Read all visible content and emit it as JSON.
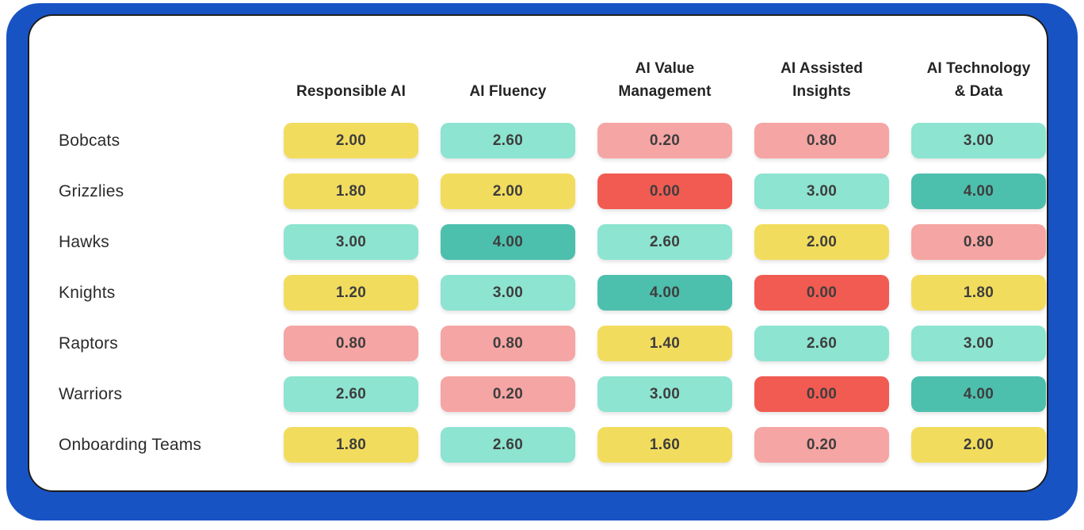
{
  "palette": {
    "frame_blue": "#1853C4",
    "card_background": "#FFFFFF",
    "card_border": "#1D1D1D",
    "red": "#F15B52",
    "pink": "#F5A5A3",
    "yellow": "#F2DC5D",
    "teal_light": "#8DE4D0",
    "teal_dark": "#4DBFAD",
    "cell_text": "#3E3E3E",
    "header_text": "#242424",
    "label_text": "#2B2B2B"
  },
  "chart_data": {
    "type": "heatmap",
    "title": "",
    "value_range": [
      0,
      4
    ],
    "value_format": "two-decimal",
    "columns": [
      {
        "label": "Responsible AI",
        "lines": [
          "Responsible AI"
        ]
      },
      {
        "label": "AI Fluency",
        "lines": [
          "AI Fluency"
        ]
      },
      {
        "label": "AI Value Management",
        "lines": [
          "AI Value",
          "Management"
        ]
      },
      {
        "label": "AI Assisted Insights",
        "lines": [
          "AI Assisted",
          "Insights"
        ]
      },
      {
        "label": "AI Technology & Data",
        "lines": [
          "AI Technology",
          "& Data"
        ]
      }
    ],
    "rows": [
      {
        "team": "Bobcats",
        "cells": [
          {
            "value": 2.0,
            "display": "2.00",
            "color": "yellow"
          },
          {
            "value": 2.6,
            "display": "2.60",
            "color": "teal_light"
          },
          {
            "value": 0.2,
            "display": "0.20",
            "color": "pink"
          },
          {
            "value": 0.8,
            "display": "0.80",
            "color": "pink"
          },
          {
            "value": 3.0,
            "display": "3.00",
            "color": "teal_light"
          }
        ]
      },
      {
        "team": "Grizzlies",
        "cells": [
          {
            "value": 1.8,
            "display": "1.80",
            "color": "yellow"
          },
          {
            "value": 2.0,
            "display": "2.00",
            "color": "yellow"
          },
          {
            "value": 0.0,
            "display": "0.00",
            "color": "red"
          },
          {
            "value": 3.0,
            "display": "3.00",
            "color": "teal_light"
          },
          {
            "value": 4.0,
            "display": "4.00",
            "color": "teal_dark"
          }
        ]
      },
      {
        "team": "Hawks",
        "cells": [
          {
            "value": 3.0,
            "display": "3.00",
            "color": "teal_light"
          },
          {
            "value": 4.0,
            "display": "4.00",
            "color": "teal_dark"
          },
          {
            "value": 2.6,
            "display": "2.60",
            "color": "teal_light"
          },
          {
            "value": 2.0,
            "display": "2.00",
            "color": "yellow"
          },
          {
            "value": 0.8,
            "display": "0.80",
            "color": "pink"
          }
        ]
      },
      {
        "team": "Knights",
        "cells": [
          {
            "value": 1.2,
            "display": "1.20",
            "color": "yellow"
          },
          {
            "value": 3.0,
            "display": "3.00",
            "color": "teal_light"
          },
          {
            "value": 4.0,
            "display": "4.00",
            "color": "teal_dark"
          },
          {
            "value": 0.0,
            "display": "0.00",
            "color": "red"
          },
          {
            "value": 1.8,
            "display": "1.80",
            "color": "yellow"
          }
        ]
      },
      {
        "team": "Raptors",
        "cells": [
          {
            "value": 0.8,
            "display": "0.80",
            "color": "pink"
          },
          {
            "value": 0.8,
            "display": "0.80",
            "color": "pink"
          },
          {
            "value": 1.4,
            "display": "1.40",
            "color": "yellow"
          },
          {
            "value": 2.6,
            "display": "2.60",
            "color": "teal_light"
          },
          {
            "value": 3.0,
            "display": "3.00",
            "color": "teal_light"
          }
        ]
      },
      {
        "team": "Warriors",
        "cells": [
          {
            "value": 2.6,
            "display": "2.60",
            "color": "teal_light"
          },
          {
            "value": 0.2,
            "display": "0.20",
            "color": "pink"
          },
          {
            "value": 3.0,
            "display": "3.00",
            "color": "teal_light"
          },
          {
            "value": 0.0,
            "display": "0.00",
            "color": "red"
          },
          {
            "value": 4.0,
            "display": "4.00",
            "color": "teal_dark"
          }
        ]
      },
      {
        "team": "Onboarding Teams",
        "cells": [
          {
            "value": 1.8,
            "display": "1.80",
            "color": "yellow"
          },
          {
            "value": 2.6,
            "display": "2.60",
            "color": "teal_light"
          },
          {
            "value": 1.6,
            "display": "1.60",
            "color": "yellow"
          },
          {
            "value": 0.2,
            "display": "0.20",
            "color": "pink"
          },
          {
            "value": 2.0,
            "display": "2.00",
            "color": "yellow"
          }
        ]
      }
    ]
  }
}
